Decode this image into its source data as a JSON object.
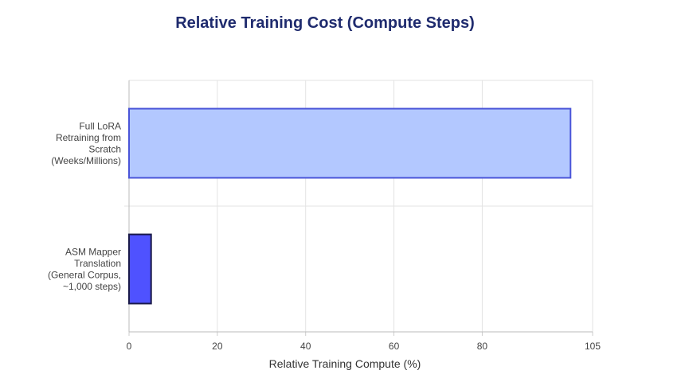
{
  "chart_data": {
    "type": "bar",
    "orientation": "horizontal",
    "title": "Relative Training Cost (Compute Steps)",
    "xlabel": "Relative Training Compute (%)",
    "ylabel": "",
    "xlim": [
      0,
      105
    ],
    "x_ticks": [
      "0",
      "20",
      "40",
      "60",
      "80",
      "105"
    ],
    "x_tick_values": [
      0,
      20,
      40,
      60,
      80,
      105
    ],
    "grid": true,
    "categories": [
      [
        "Full LoRA",
        "Retraining from",
        "Scratch",
        "(Weeks/Millions)"
      ],
      [
        "ASM Mapper",
        "Translation",
        "(General Corpus,",
        "~1,000 steps)"
      ]
    ],
    "values": [
      100,
      5
    ],
    "colors": {
      "fill": [
        "#b3c8ff",
        "#4f52ff"
      ],
      "stroke": [
        "#4a55d8",
        "#1a1a4a"
      ]
    }
  }
}
